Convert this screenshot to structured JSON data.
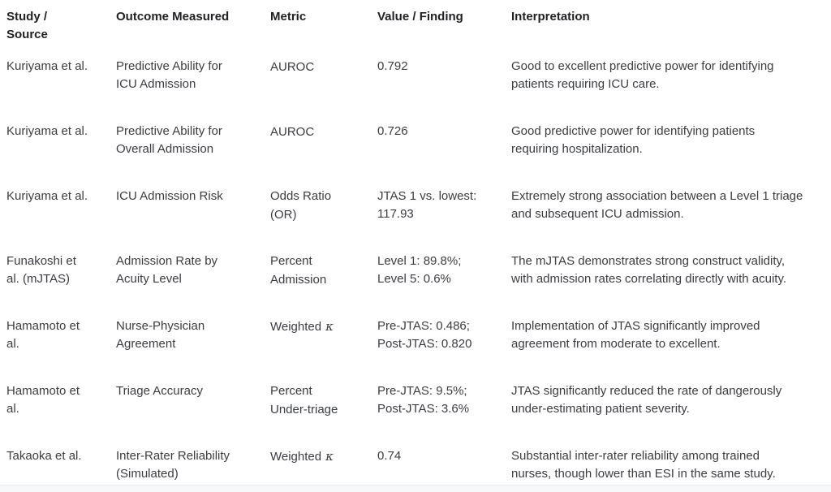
{
  "colors": {
    "background": "#ffffff",
    "header_text": "#1f2023",
    "body_text": "#3a3d42",
    "footer_strip": "#f7f8fa"
  },
  "table": {
    "headers": {
      "study": "Study /\nSource",
      "outcome": "Outcome Measured",
      "metric": "Metric",
      "value": "Value / Finding",
      "interpretation": "Interpretation"
    },
    "rows": [
      {
        "study": "Kuriyama et al.",
        "outcome": "Predictive Ability for\nICU Admission",
        "metric": "AUROC",
        "metric_symbol": "",
        "value": "0.792",
        "interpretation": "Good to excellent predictive power for identifying\npatients requiring ICU care."
      },
      {
        "study": "Kuriyama et al.",
        "outcome": "Predictive Ability for\nOverall Admission",
        "metric": "AUROC",
        "metric_symbol": "",
        "value": "0.726",
        "interpretation": "Good predictive power for identifying patients\nrequiring hospitalization."
      },
      {
        "study": "Kuriyama et al.",
        "outcome": "ICU Admission Risk",
        "metric": "Odds Ratio\n(OR)",
        "metric_symbol": "",
        "value": "JTAS 1 vs. lowest:\n117.93",
        "interpretation": "Extremely strong association between a Level 1 triage\nand subsequent ICU admission."
      },
      {
        "study": "Funakoshi et\nal. (mJTAS)",
        "outcome": "Admission Rate by\nAcuity Level",
        "metric": "Percent\nAdmission",
        "metric_symbol": "",
        "value": "Level 1: 89.8%;\nLevel 5: 0.6%",
        "interpretation": "The mJTAS demonstrates strong construct validity,\nwith admission rates correlating directly with acuity."
      },
      {
        "study": "Hamamoto et\nal.",
        "outcome": "Nurse-Physician\nAgreement",
        "metric": "Weighted",
        "metric_symbol": "κ",
        "value": "Pre-JTAS: 0.486;\nPost-JTAS: 0.820",
        "interpretation": "Implementation of JTAS significantly improved\nagreement from moderate to excellent."
      },
      {
        "study": "Hamamoto et\nal.",
        "outcome": "Triage Accuracy",
        "metric": "Percent\nUnder-triage",
        "metric_symbol": "",
        "value": "Pre-JTAS: 9.5%;\nPost-JTAS: 3.6%",
        "interpretation": "JTAS significantly reduced the rate of dangerously\nunder-estimating patient severity."
      },
      {
        "study": "Takaoka et al.",
        "outcome": "Inter-Rater Reliability\n(Simulated)",
        "metric": "Weighted",
        "metric_symbol": "κ",
        "value": "0.74",
        "interpretation": "Substantial inter-rater reliability among trained\nnurses, though lower than ESI in the same study."
      }
    ]
  }
}
